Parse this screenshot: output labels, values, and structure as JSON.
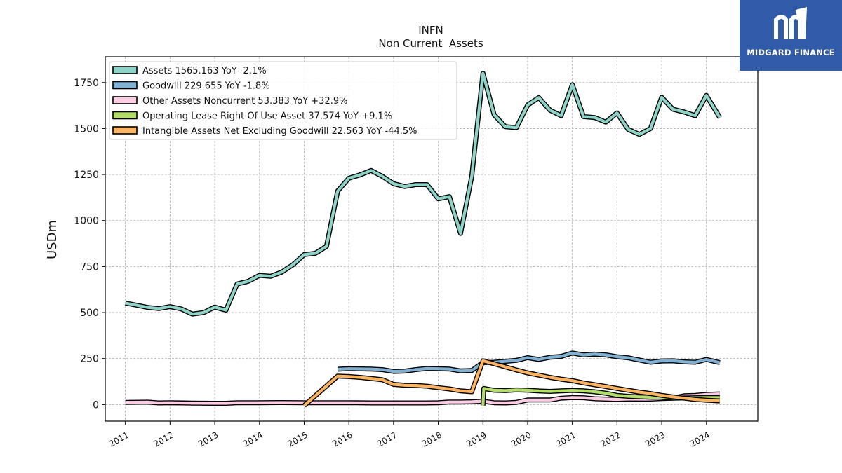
{
  "brand": {
    "name": "MIDGARD FINANCE",
    "bg_color": "#2f5ba8"
  },
  "chart_data": {
    "type": "line",
    "title": "INFN",
    "subtitle": "Non Current  Assets",
    "xlabel": "",
    "ylabel": "USDm",
    "xlim": [
      2010.55,
      2025.15
    ],
    "ylim": [
      -90,
      1890
    ],
    "yticks": [
      0,
      250,
      500,
      750,
      1000,
      1250,
      1500,
      1750
    ],
    "xticks": [
      2011,
      2012,
      2013,
      2014,
      2015,
      2016,
      2017,
      2018,
      2019,
      2020,
      2021,
      2022,
      2023,
      2024
    ],
    "grid": true,
    "legend_position": "top-left",
    "series": [
      {
        "name": "Assets",
        "legend": "Assets  1565.163 YoY -2.1%",
        "color": "#8dd3c7",
        "points": [
          [
            2011.0,
            552
          ],
          [
            2011.25,
            540
          ],
          [
            2011.5,
            528
          ],
          [
            2011.75,
            522
          ],
          [
            2012.0,
            532
          ],
          [
            2012.25,
            520
          ],
          [
            2012.5,
            492
          ],
          [
            2012.75,
            500
          ],
          [
            2013.0,
            530
          ],
          [
            2013.25,
            513
          ],
          [
            2013.5,
            655
          ],
          [
            2013.75,
            670
          ],
          [
            2014.0,
            702
          ],
          [
            2014.25,
            697
          ],
          [
            2014.5,
            720
          ],
          [
            2014.75,
            760
          ],
          [
            2015.0,
            815
          ],
          [
            2015.25,
            822
          ],
          [
            2015.5,
            860
          ],
          [
            2015.75,
            1160
          ],
          [
            2016.0,
            1230
          ],
          [
            2016.25,
            1248
          ],
          [
            2016.5,
            1272
          ],
          [
            2016.75,
            1240
          ],
          [
            2017.0,
            1200
          ],
          [
            2017.25,
            1185
          ],
          [
            2017.5,
            1195
          ],
          [
            2017.75,
            1195
          ],
          [
            2018.0,
            1118
          ],
          [
            2018.25,
            1130
          ],
          [
            2018.5,
            930
          ],
          [
            2018.75,
            1240
          ],
          [
            2019.0,
            1800
          ],
          [
            2019.25,
            1575
          ],
          [
            2019.5,
            1510
          ],
          [
            2019.75,
            1505
          ],
          [
            2020.0,
            1628
          ],
          [
            2020.25,
            1668
          ],
          [
            2020.5,
            1600
          ],
          [
            2020.75,
            1570
          ],
          [
            2021.0,
            1738
          ],
          [
            2021.25,
            1565
          ],
          [
            2021.5,
            1560
          ],
          [
            2021.75,
            1535
          ],
          [
            2022.0,
            1585
          ],
          [
            2022.25,
            1495
          ],
          [
            2022.5,
            1468
          ],
          [
            2022.75,
            1500
          ],
          [
            2023.0,
            1670
          ],
          [
            2023.25,
            1605
          ],
          [
            2023.5,
            1590
          ],
          [
            2023.75,
            1570
          ],
          [
            2024.0,
            1680
          ],
          [
            2024.3,
            1560
          ]
        ]
      },
      {
        "name": "Goodwill",
        "legend": "Goodwill  229.655 YoY -1.8%",
        "color": "#80b1d3",
        "points": [
          [
            2015.75,
            192
          ],
          [
            2016.0,
            195
          ],
          [
            2016.5,
            193
          ],
          [
            2016.75,
            190
          ],
          [
            2017.0,
            180
          ],
          [
            2017.25,
            182
          ],
          [
            2017.5,
            190
          ],
          [
            2017.75,
            196
          ],
          [
            2018.0,
            195
          ],
          [
            2018.25,
            193
          ],
          [
            2018.5,
            183
          ],
          [
            2018.75,
            185
          ],
          [
            2019.0,
            228
          ],
          [
            2019.25,
            230
          ],
          [
            2019.5,
            235
          ],
          [
            2019.75,
            240
          ],
          [
            2020.0,
            255
          ],
          [
            2020.25,
            245
          ],
          [
            2020.5,
            257
          ],
          [
            2020.75,
            262
          ],
          [
            2021.0,
            280
          ],
          [
            2021.25,
            270
          ],
          [
            2021.5,
            274
          ],
          [
            2021.75,
            270
          ],
          [
            2022.0,
            260
          ],
          [
            2022.25,
            254
          ],
          [
            2022.5,
            242
          ],
          [
            2022.75,
            230
          ],
          [
            2023.0,
            237
          ],
          [
            2023.25,
            238
          ],
          [
            2023.5,
            232
          ],
          [
            2023.75,
            230
          ],
          [
            2024.0,
            245
          ],
          [
            2024.3,
            228
          ]
        ]
      },
      {
        "name": "Other Assets Noncurrent",
        "legend": "Other Assets Noncurrent  53.383 YoY +32.9%",
        "color": "#fccde5",
        "points": [
          [
            2011.0,
            12
          ],
          [
            2011.5,
            13
          ],
          [
            2011.75,
            9
          ],
          [
            2012.0,
            10
          ],
          [
            2012.5,
            8
          ],
          [
            2013.0,
            7
          ],
          [
            2013.25,
            7
          ],
          [
            2013.5,
            10
          ],
          [
            2014.0,
            10
          ],
          [
            2014.5,
            11
          ],
          [
            2015.0,
            10
          ],
          [
            2015.5,
            10
          ],
          [
            2016.0,
            10
          ],
          [
            2016.5,
            9
          ],
          [
            2017.0,
            9
          ],
          [
            2017.5,
            9
          ],
          [
            2017.75,
            9
          ],
          [
            2018.0,
            10
          ],
          [
            2018.25,
            14
          ],
          [
            2018.5,
            14
          ],
          [
            2018.75,
            15
          ],
          [
            2019.0,
            18
          ],
          [
            2019.25,
            10
          ],
          [
            2019.5,
            9
          ],
          [
            2019.75,
            12
          ],
          [
            2020.0,
            25
          ],
          [
            2020.25,
            25
          ],
          [
            2020.5,
            25
          ],
          [
            2020.75,
            35
          ],
          [
            2021.0,
            38
          ],
          [
            2021.25,
            37
          ],
          [
            2021.5,
            32
          ],
          [
            2021.75,
            30
          ],
          [
            2022.0,
            28
          ],
          [
            2022.25,
            30
          ],
          [
            2022.5,
            30
          ],
          [
            2022.75,
            30
          ],
          [
            2023.0,
            33
          ],
          [
            2023.25,
            35
          ],
          [
            2023.5,
            48
          ],
          [
            2023.75,
            50
          ],
          [
            2024.0,
            55
          ],
          [
            2024.3,
            58
          ]
        ]
      },
      {
        "name": "Operating Lease Right Of Use Asset",
        "legend": "Operating Lease Right Of Use Asset  37.574 YoY +9.1%",
        "color": "#b3de69",
        "points": [
          [
            2019.0,
            -5
          ],
          [
            2019.02,
            88
          ],
          [
            2019.25,
            78
          ],
          [
            2019.5,
            76
          ],
          [
            2019.75,
            80
          ],
          [
            2020.0,
            78
          ],
          [
            2020.25,
            74
          ],
          [
            2020.5,
            72
          ],
          [
            2020.75,
            75
          ],
          [
            2021.0,
            77
          ],
          [
            2021.25,
            75
          ],
          [
            2021.5,
            70
          ],
          [
            2021.75,
            62
          ],
          [
            2022.0,
            50
          ],
          [
            2022.25,
            45
          ],
          [
            2022.5,
            42
          ],
          [
            2022.75,
            40
          ],
          [
            2023.0,
            40
          ],
          [
            2023.25,
            35
          ],
          [
            2023.5,
            36
          ],
          [
            2023.75,
            37
          ],
          [
            2024.0,
            38
          ],
          [
            2024.3,
            38
          ]
        ]
      },
      {
        "name": "Intangible Assets Net Excluding Goodwill",
        "legend": "Intangible Assets Net Excluding Goodwill  22.563 YoY -44.5%",
        "color": "#fdb462",
        "points": [
          [
            2015.0,
            -5
          ],
          [
            2015.75,
            155
          ],
          [
            2016.0,
            152
          ],
          [
            2016.25,
            148
          ],
          [
            2016.5,
            142
          ],
          [
            2016.75,
            135
          ],
          [
            2017.0,
            110
          ],
          [
            2017.25,
            105
          ],
          [
            2017.5,
            104
          ],
          [
            2017.75,
            100
          ],
          [
            2018.0,
            92
          ],
          [
            2018.25,
            85
          ],
          [
            2018.5,
            75
          ],
          [
            2018.75,
            70
          ],
          [
            2019.0,
            238
          ],
          [
            2019.25,
            222
          ],
          [
            2019.5,
            205
          ],
          [
            2019.75,
            188
          ],
          [
            2020.0,
            172
          ],
          [
            2020.25,
            160
          ],
          [
            2020.5,
            148
          ],
          [
            2020.75,
            138
          ],
          [
            2021.0,
            130
          ],
          [
            2021.25,
            118
          ],
          [
            2021.5,
            108
          ],
          [
            2021.75,
            98
          ],
          [
            2022.0,
            88
          ],
          [
            2022.25,
            78
          ],
          [
            2022.5,
            68
          ],
          [
            2022.75,
            60
          ],
          [
            2023.0,
            50
          ],
          [
            2023.25,
            42
          ],
          [
            2023.5,
            35
          ],
          [
            2023.75,
            28
          ],
          [
            2024.0,
            24
          ],
          [
            2024.3,
            20
          ]
        ]
      }
    ]
  }
}
